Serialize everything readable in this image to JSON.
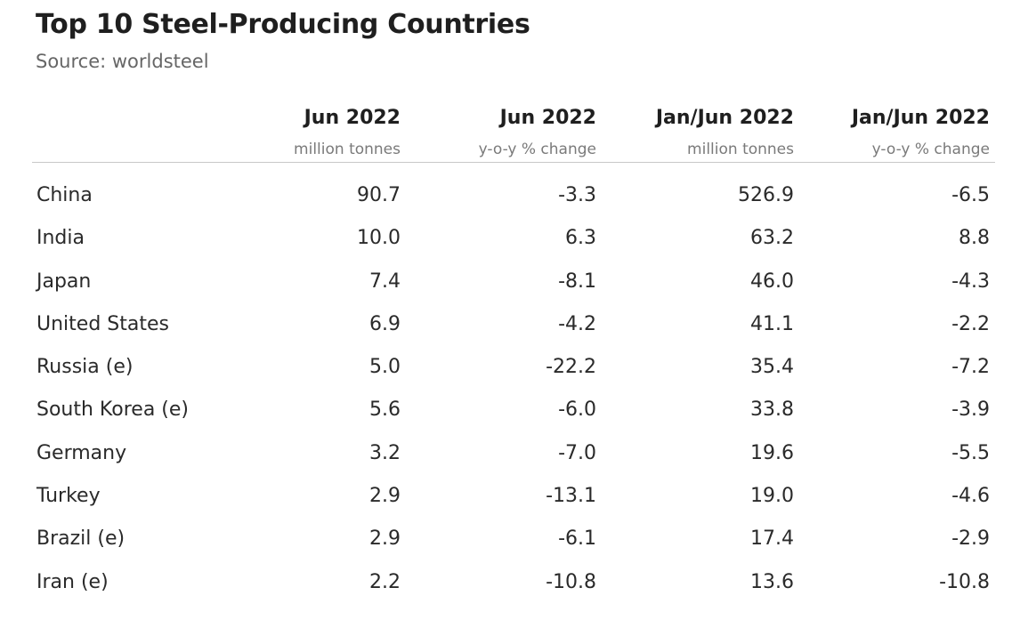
{
  "chart_data": {
    "type": "table",
    "title": "Top 10 Steel-Producing Countries",
    "subtitle": "Source: worldsteel",
    "columns": [
      {
        "label": "Jun 2022",
        "sublabel": "million tonnes"
      },
      {
        "label": "Jun 2022",
        "sublabel": "y-o-y % change"
      },
      {
        "label": "Jan/Jun 2022",
        "sublabel": "million tonnes"
      },
      {
        "label": "Jan/Jun 2022",
        "sublabel": "y-o-y % change"
      }
    ],
    "rows": [
      {
        "country": "China",
        "values": [
          "90.7",
          "-3.3",
          "526.9",
          "-6.5"
        ]
      },
      {
        "country": "India",
        "values": [
          "10.0",
          "6.3",
          "63.2",
          "8.8"
        ]
      },
      {
        "country": "Japan",
        "values": [
          "7.4",
          "-8.1",
          "46.0",
          "-4.3"
        ]
      },
      {
        "country": "United States",
        "values": [
          "6.9",
          "-4.2",
          "41.1",
          "-2.2"
        ]
      },
      {
        "country": "Russia (e)",
        "values": [
          "5.0",
          "-22.2",
          "35.4",
          "-7.2"
        ]
      },
      {
        "country": "South Korea (e)",
        "values": [
          "5.6",
          "-6.0",
          "33.8",
          "-3.9"
        ]
      },
      {
        "country": "Germany",
        "values": [
          "3.2",
          "-7.0",
          "19.6",
          "-5.5"
        ]
      },
      {
        "country": "Turkey",
        "values": [
          "2.9",
          "-13.1",
          "19.0",
          "-4.6"
        ]
      },
      {
        "country": "Brazil (e)",
        "values": [
          "2.9",
          "-6.1",
          "17.4",
          "-2.9"
        ]
      },
      {
        "country": "Iran (e)",
        "values": [
          "2.2",
          "-10.8",
          "13.6",
          "-10.8"
        ]
      }
    ]
  }
}
